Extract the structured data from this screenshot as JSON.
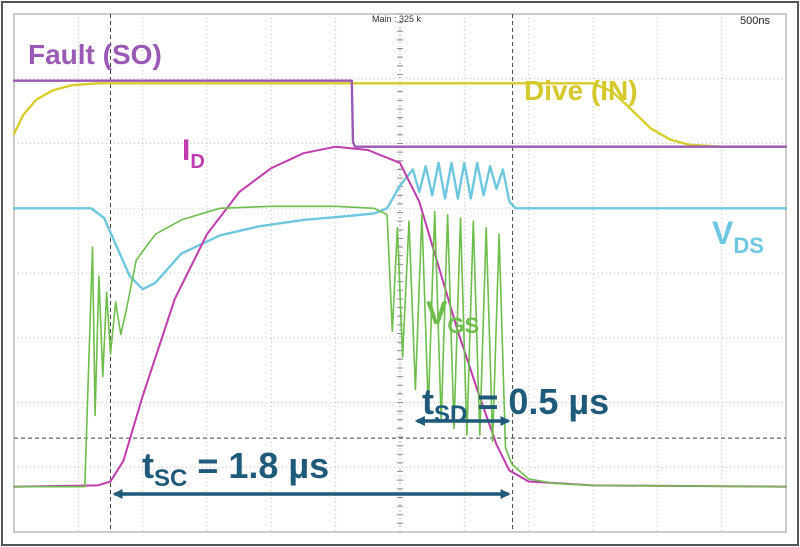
{
  "header": {
    "main_label": "Main : 325 k",
    "timebase": "500ns"
  },
  "colors": {
    "fault": "#9B59B6",
    "drive": "#D8CC2A",
    "id": "#C03CAE",
    "vds": "#6EC7E0",
    "vgs": "#6DBE4B",
    "annotation": "#1F5A7A",
    "grid": "#BDBDBD"
  },
  "chart_data": {
    "type": "line",
    "title": "",
    "xlabel": "",
    "ylabel": "",
    "xlim": [
      0,
      12
    ],
    "ylim": [
      0,
      8
    ],
    "grid": true,
    "series": [
      {
        "key": "fault",
        "name": "Fault (SO)",
        "points": [
          [
            0,
            6.97
          ],
          [
            1,
            6.97
          ],
          [
            2,
            6.97
          ],
          [
            3,
            6.97
          ],
          [
            4,
            6.97
          ],
          [
            5,
            6.97
          ],
          [
            5.25,
            6.97
          ],
          [
            5.27,
            6.02
          ],
          [
            5.3,
            5.95
          ],
          [
            6,
            5.95
          ],
          [
            7,
            5.95
          ],
          [
            8,
            5.95
          ],
          [
            9,
            5.95
          ],
          [
            10,
            5.95
          ],
          [
            11,
            5.95
          ],
          [
            12,
            5.95
          ]
        ]
      },
      {
        "key": "drive",
        "name": "Dive (IN)",
        "points": [
          [
            0,
            6.15
          ],
          [
            0.15,
            6.45
          ],
          [
            0.35,
            6.68
          ],
          [
            0.6,
            6.82
          ],
          [
            0.9,
            6.9
          ],
          [
            1.3,
            6.93
          ],
          [
            2,
            6.93
          ],
          [
            3,
            6.93
          ],
          [
            4,
            6.93
          ],
          [
            5,
            6.93
          ],
          [
            6,
            6.93
          ],
          [
            7,
            6.93
          ],
          [
            8,
            6.93
          ],
          [
            9,
            6.93
          ],
          [
            9.3,
            6.8
          ],
          [
            9.6,
            6.52
          ],
          [
            9.9,
            6.23
          ],
          [
            10.2,
            6.06
          ],
          [
            10.5,
            5.98
          ],
          [
            11,
            5.95
          ],
          [
            12,
            5.95
          ]
        ]
      },
      {
        "key": "id",
        "name": "I_D",
        "points": [
          [
            0,
            0.7
          ],
          [
            1.3,
            0.72
          ],
          [
            1.5,
            0.78
          ],
          [
            1.7,
            1.1
          ],
          [
            2,
            2.1
          ],
          [
            2.5,
            3.6
          ],
          [
            3,
            4.6
          ],
          [
            3.5,
            5.25
          ],
          [
            4,
            5.62
          ],
          [
            4.5,
            5.85
          ],
          [
            5,
            5.95
          ],
          [
            5.5,
            5.9
          ],
          [
            6,
            5.7
          ],
          [
            6.3,
            5.1
          ],
          [
            6.6,
            4.1
          ],
          [
            6.9,
            3.1
          ],
          [
            7.2,
            2.2
          ],
          [
            7.5,
            1.35
          ],
          [
            7.7,
            0.95
          ],
          [
            8,
            0.78
          ],
          [
            9,
            0.72
          ],
          [
            12,
            0.7
          ]
        ]
      },
      {
        "key": "vds",
        "name": "V_DS",
        "points": [
          [
            0,
            5.0
          ],
          [
            1.2,
            5.0
          ],
          [
            1.4,
            4.85
          ],
          [
            1.6,
            4.4
          ],
          [
            1.8,
            3.95
          ],
          [
            2.0,
            3.75
          ],
          [
            2.2,
            3.85
          ],
          [
            2.6,
            4.3
          ],
          [
            3.2,
            4.58
          ],
          [
            3.8,
            4.72
          ],
          [
            4.5,
            4.82
          ],
          [
            5.2,
            4.88
          ],
          [
            5.6,
            4.92
          ],
          [
            5.8,
            5.0
          ],
          [
            6.0,
            5.35
          ],
          [
            6.2,
            5.6
          ],
          [
            6.3,
            5.25
          ],
          [
            6.4,
            5.65
          ],
          [
            6.5,
            5.2
          ],
          [
            6.6,
            5.7
          ],
          [
            6.7,
            5.15
          ],
          [
            6.8,
            5.7
          ],
          [
            6.9,
            5.15
          ],
          [
            7.0,
            5.7
          ],
          [
            7.1,
            5.15
          ],
          [
            7.2,
            5.7
          ],
          [
            7.3,
            5.2
          ],
          [
            7.4,
            5.65
          ],
          [
            7.5,
            5.3
          ],
          [
            7.6,
            5.6
          ],
          [
            7.7,
            5.1
          ],
          [
            7.8,
            5.0
          ],
          [
            8.5,
            5.0
          ],
          [
            10,
            5.0
          ],
          [
            12,
            5.0
          ]
        ]
      },
      {
        "key": "vgs",
        "name": "V_GS",
        "points": [
          [
            0,
            0.7
          ],
          [
            1.1,
            0.7
          ],
          [
            1.22,
            4.4
          ],
          [
            1.26,
            1.8
          ],
          [
            1.32,
            3.95
          ],
          [
            1.38,
            2.4
          ],
          [
            1.44,
            3.7
          ],
          [
            1.5,
            2.75
          ],
          [
            1.58,
            3.55
          ],
          [
            1.66,
            3.05
          ],
          [
            1.75,
            3.45
          ],
          [
            1.9,
            4.2
          ],
          [
            2.2,
            4.6
          ],
          [
            2.6,
            4.82
          ],
          [
            3.2,
            5.0
          ],
          [
            4,
            5.03
          ],
          [
            5,
            5.03
          ],
          [
            5.6,
            5.0
          ],
          [
            5.8,
            4.9
          ],
          [
            5.88,
            3.1
          ],
          [
            5.96,
            4.7
          ],
          [
            6.04,
            2.7
          ],
          [
            6.14,
            4.8
          ],
          [
            6.24,
            2.2
          ],
          [
            6.34,
            4.9
          ],
          [
            6.44,
            1.9
          ],
          [
            6.54,
            4.95
          ],
          [
            6.64,
            1.7
          ],
          [
            6.74,
            4.9
          ],
          [
            6.84,
            1.6
          ],
          [
            6.94,
            4.85
          ],
          [
            7.04,
            1.5
          ],
          [
            7.14,
            4.8
          ],
          [
            7.24,
            1.5
          ],
          [
            7.34,
            4.7
          ],
          [
            7.44,
            1.4
          ],
          [
            7.54,
            4.6
          ],
          [
            7.64,
            1.3
          ],
          [
            7.74,
            1.05
          ],
          [
            7.85,
            0.95
          ],
          [
            8.0,
            0.82
          ],
          [
            8.4,
            0.75
          ],
          [
            9,
            0.72
          ],
          [
            12,
            0.7
          ]
        ]
      }
    ],
    "labels": {
      "fault": "Fault (SO)",
      "drive": "Dive (IN)",
      "id_main": "I",
      "id_sub": "D",
      "vds_main": "V",
      "vds_sub": "DS",
      "vgs_main": "V",
      "vgs_sub": "GS",
      "tsd_t": "t",
      "tsd_sub": "SD",
      "tsd_rest": " = 0.5 µs",
      "tsc_t": "t",
      "tsc_sub": "SC",
      "tsc_rest": " = 1.8 µs"
    },
    "markers": {
      "cursor_1": 1.5,
      "cursor_2": 7.75,
      "tsc_arrow": [
        1.5,
        7.75
      ],
      "tsd_arrow": [
        6.2,
        7.75
      ]
    }
  }
}
